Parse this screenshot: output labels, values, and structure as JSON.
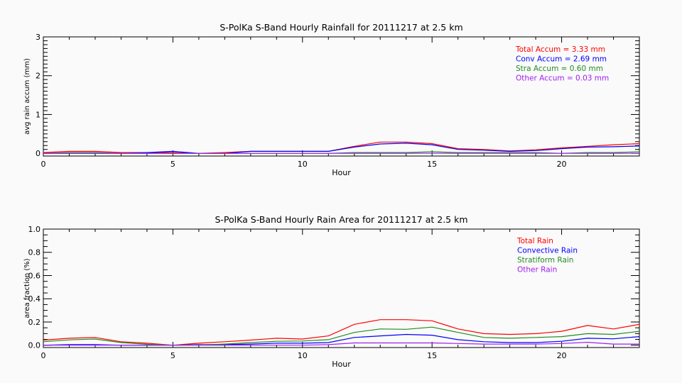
{
  "chart_data": [
    {
      "type": "line",
      "title": "S-PolKa S-Band Hourly Rainfall for 20111217 at 2.5 km",
      "xlabel": "Hour",
      "ylabel": "avg rain accum (mm)",
      "xlim": [
        0,
        23
      ],
      "ylim": [
        -0.07,
        3
      ],
      "xticks": [
        0,
        5,
        10,
        15,
        20
      ],
      "yticks": [
        0,
        1,
        2,
        3
      ],
      "ytick_labels": [
        "0",
        "1",
        "2",
        "3"
      ],
      "legend_placement": "top-right",
      "x": [
        0,
        1,
        2,
        3,
        4,
        5,
        6,
        7,
        8,
        9,
        10,
        11,
        12,
        13,
        14,
        15,
        16,
        17,
        18,
        19,
        20,
        21,
        22,
        23
      ],
      "series": [
        {
          "name": "Total Accum = 3.33 mm",
          "color": "#ff0000",
          "values": [
            0.02,
            0.05,
            0.05,
            0.02,
            0.02,
            0.02,
            0.0,
            0.02,
            0.05,
            0.05,
            0.05,
            0.05,
            0.18,
            0.29,
            0.29,
            0.25,
            0.12,
            0.1,
            0.06,
            0.09,
            0.14,
            0.18,
            0.22,
            0.25
          ]
        },
        {
          "name": "Conv Accum = 2.69 mm",
          "color": "#0000ff",
          "values": [
            0.0,
            0.0,
            0.0,
            0.0,
            0.02,
            0.05,
            0.0,
            0.0,
            0.05,
            0.05,
            0.05,
            0.05,
            0.16,
            0.24,
            0.26,
            0.22,
            0.1,
            0.08,
            0.05,
            0.07,
            0.12,
            0.16,
            0.17,
            0.19
          ]
        },
        {
          "name": "Stra Accum = 0.60 mm",
          "color": "#228b22",
          "values": [
            0.0,
            0.02,
            0.02,
            0.0,
            0.0,
            0.0,
            0.0,
            0.0,
            0.0,
            0.0,
            0.0,
            0.0,
            0.02,
            0.02,
            0.02,
            0.04,
            0.02,
            0.02,
            0.02,
            0.02,
            0.0,
            0.02,
            0.02,
            0.04
          ]
        },
        {
          "name": "Other Accum = 0.03 mm",
          "color": "#a020f0",
          "values": [
            0,
            0,
            0,
            0,
            0,
            0,
            0,
            0,
            0,
            0,
            0,
            0,
            0,
            0,
            0,
            0,
            0,
            0,
            0,
            0,
            0,
            0,
            0,
            0
          ]
        }
      ]
    },
    {
      "type": "line",
      "title": "S-PolKa S-Band Hourly Rain Area for 20111217 at 2.5 km",
      "xlabel": "Hour",
      "ylabel": "area fraction (%)",
      "xlim": [
        0,
        23
      ],
      "ylim": [
        -0.02,
        1.0
      ],
      "xticks": [
        0,
        5,
        10,
        15,
        20
      ],
      "yticks": [
        0.0,
        0.2,
        0.4,
        0.6,
        0.8,
        1.0
      ],
      "ytick_labels": [
        "0.0",
        "0.2",
        "0.4",
        "0.6",
        "0.8",
        "1.0"
      ],
      "legend_placement": "top-right",
      "x": [
        0,
        1,
        2,
        3,
        4,
        5,
        6,
        7,
        8,
        9,
        10,
        11,
        12,
        13,
        14,
        15,
        16,
        17,
        18,
        19,
        20,
        21,
        22,
        23
      ],
      "series": [
        {
          "name": "Total Rain",
          "color": "#ff0000",
          "values": [
            0.044,
            0.06,
            0.067,
            0.03,
            0.017,
            0.0,
            0.017,
            0.03,
            0.044,
            0.06,
            0.053,
            0.08,
            0.18,
            0.22,
            0.22,
            0.21,
            0.14,
            0.1,
            0.093,
            0.1,
            0.12,
            0.17,
            0.14,
            0.18
          ]
        },
        {
          "name": "Convective Rain",
          "color": "#0000ff",
          "values": [
            0.0,
            0.005,
            0.005,
            0.0,
            0.0,
            0.0,
            0.005,
            0.005,
            0.01,
            0.017,
            0.017,
            0.023,
            0.067,
            0.08,
            0.093,
            0.086,
            0.048,
            0.03,
            0.023,
            0.023,
            0.034,
            0.06,
            0.055,
            0.074
          ]
        },
        {
          "name": "Stratiform Rain",
          "color": "#228b22",
          "values": [
            0.03,
            0.046,
            0.053,
            0.023,
            0.008,
            0.0,
            0.002,
            0.01,
            0.023,
            0.034,
            0.036,
            0.048,
            0.11,
            0.14,
            0.137,
            0.156,
            0.11,
            0.067,
            0.06,
            0.067,
            0.074,
            0.1,
            0.093,
            0.12
          ]
        },
        {
          "name": "Other Rain",
          "color": "#a020f0",
          "values": [
            0,
            0,
            0,
            0,
            0,
            0,
            0,
            0,
            0,
            0,
            0,
            0.005,
            0.02,
            0.02,
            0.02,
            0.02,
            0.015,
            0.01,
            0.01,
            0.01,
            0.015,
            0.025,
            0.01,
            0.01
          ]
        }
      ]
    }
  ]
}
